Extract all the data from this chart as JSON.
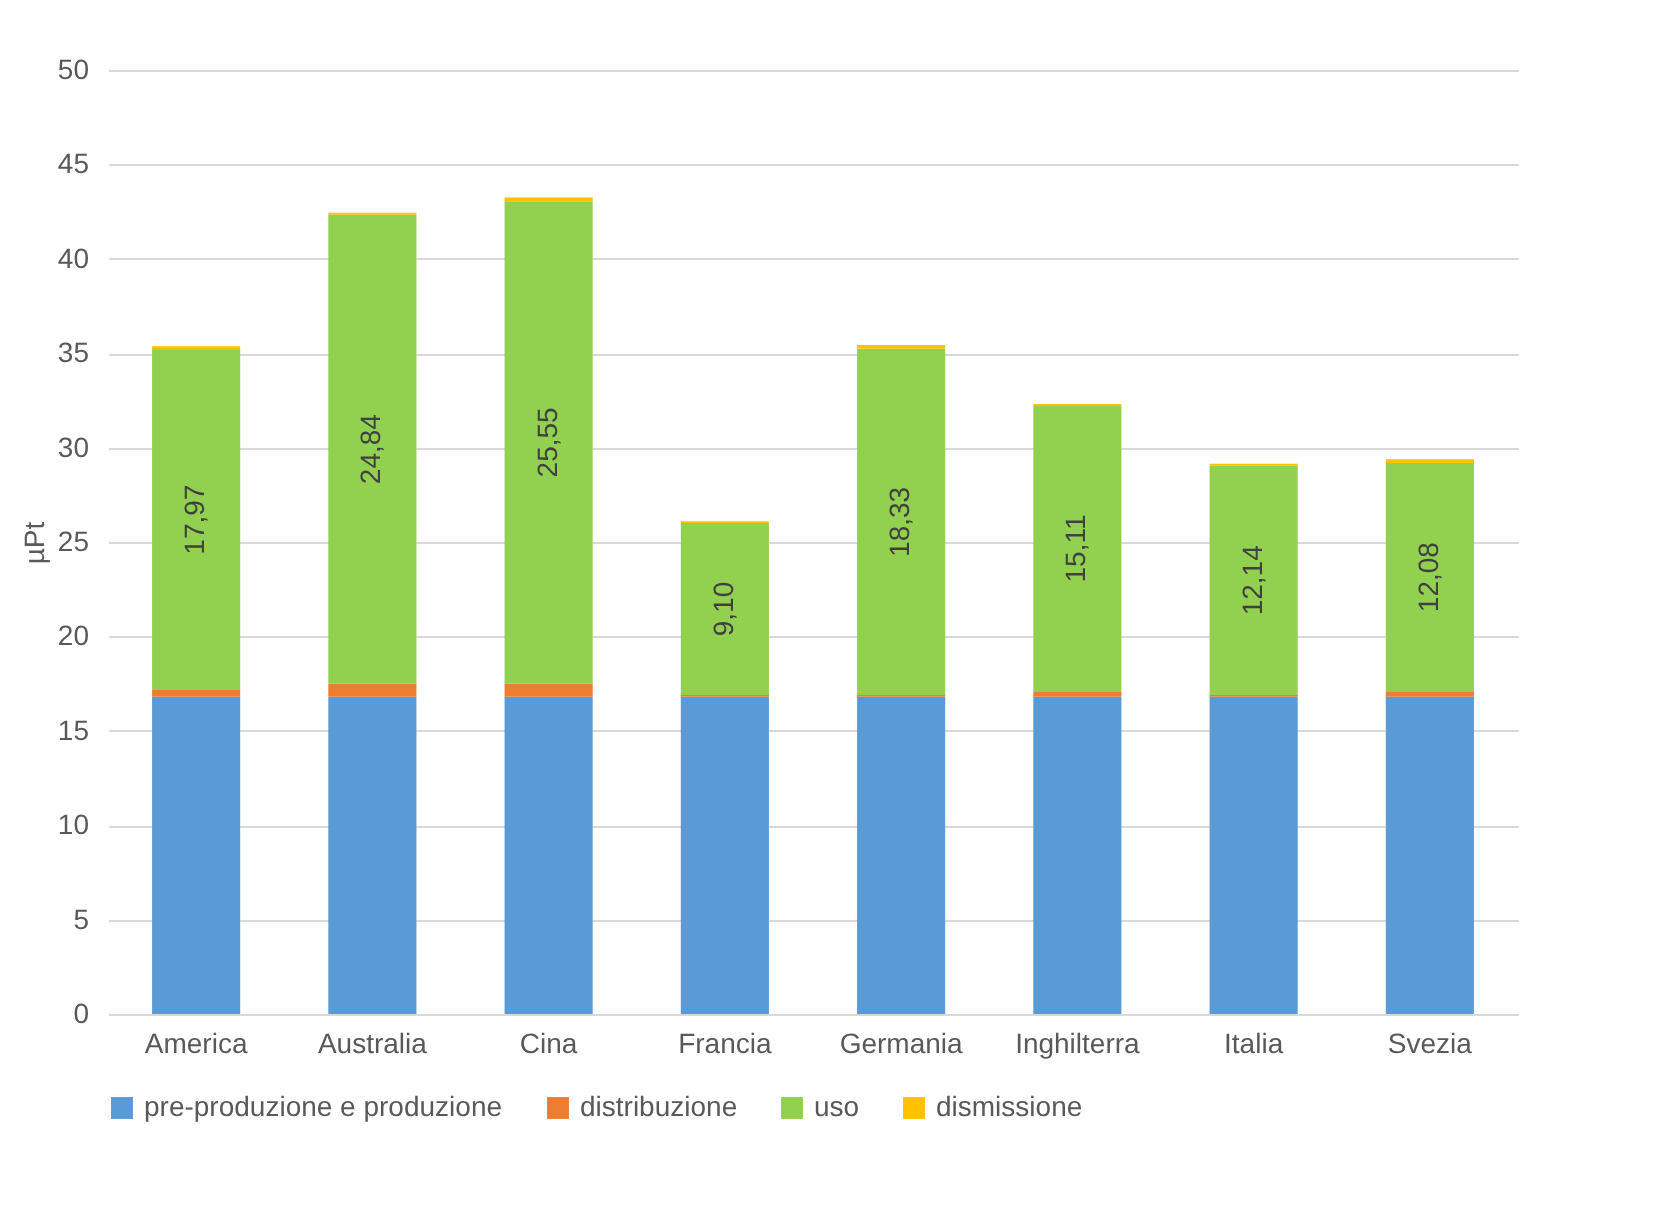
{
  "chart_data": {
    "type": "bar",
    "stacked": true,
    "ylabel": "µPt",
    "categories": [
      "America",
      "Australia",
      "Cina",
      "Francia",
      "Germania",
      "Inghilterra",
      "Italia",
      "Svezia"
    ],
    "series": [
      {
        "name": "pre-produzione e produzione",
        "color": "#5b9bd5",
        "values": [
          16.8,
          16.8,
          16.8,
          16.8,
          16.8,
          16.8,
          16.8,
          16.8
        ]
      },
      {
        "name": "distribuzione",
        "color": "#ed7d31",
        "values": [
          0.4,
          0.7,
          0.7,
          0.1,
          0.1,
          0.3,
          0.1,
          0.3
        ]
      },
      {
        "name": "uso",
        "color": "#92d050",
        "values": [
          17.97,
          24.84,
          25.55,
          9.1,
          18.33,
          15.11,
          12.14,
          12.08
        ],
        "value_labels": [
          "17,97",
          "24,84",
          "25,55",
          "9,10",
          "18,33",
          "15,11",
          "12,14",
          "12,08"
        ]
      },
      {
        "name": "dismissione",
        "color": "#ffc000",
        "values": [
          0.2,
          0.1,
          0.2,
          0.1,
          0.2,
          0.1,
          0.1,
          0.2
        ]
      }
    ],
    "ylim": [
      0,
      50
    ],
    "yticks": [
      0,
      5,
      10,
      15,
      20,
      25,
      30,
      35,
      40,
      45,
      50
    ],
    "grid": "y",
    "legend": "bottom"
  }
}
